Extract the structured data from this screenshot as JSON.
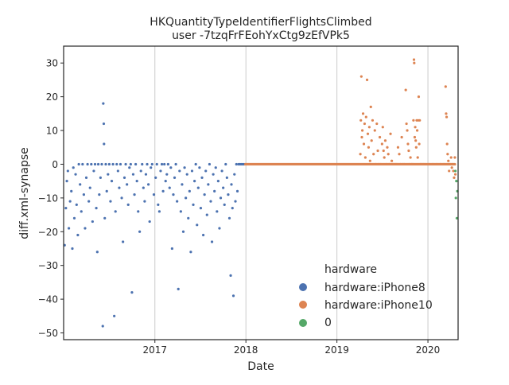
{
  "chart_data": {
    "type": "scatter",
    "title": "HKQuantityTypeIdentifierFlightsClimbed",
    "subtitle": "user -7tzqFrFEohYxCtg9zEfVPk5",
    "xlabel": "Date",
    "ylabel": "diff.xml-synapse",
    "xlim": [
      "2016-01-01",
      "2020-05-01"
    ],
    "ylim": [
      -52,
      35
    ],
    "x_ticks": [
      "2017",
      "2018",
      "2019",
      "2020"
    ],
    "y_ticks": [
      30,
      20,
      10,
      0,
      -10,
      -20,
      -30,
      -40,
      -50
    ],
    "y_tick_labels": [
      "30",
      "20",
      "10",
      "0",
      "−10",
      "−20",
      "−30",
      "−40",
      "−50"
    ],
    "grid": "vertical",
    "legend": {
      "title": "hardware",
      "placement": "lower-right"
    },
    "series": [
      {
        "name": "hardware:iPhone8",
        "color": "#4c72b0",
        "points": [
          [
            "2016-01-05",
            -24
          ],
          [
            "2016-01-10",
            -13
          ],
          [
            "2016-01-14",
            -5
          ],
          [
            "2016-01-18",
            -2
          ],
          [
            "2016-01-22",
            -19
          ],
          [
            "2016-01-27",
            -11
          ],
          [
            "2016-02-01",
            -8
          ],
          [
            "2016-02-05",
            -25
          ],
          [
            "2016-02-09",
            -1
          ],
          [
            "2016-02-13",
            -16
          ],
          [
            "2016-02-18",
            -3
          ],
          [
            "2016-02-22",
            -12
          ],
          [
            "2016-02-27",
            -21
          ],
          [
            "2016-03-02",
            0
          ],
          [
            "2016-03-07",
            -6
          ],
          [
            "2016-03-12",
            -14
          ],
          [
            "2016-03-17",
            0
          ],
          [
            "2016-03-22",
            -9
          ],
          [
            "2016-03-27",
            -19
          ],
          [
            "2016-04-01",
            -4
          ],
          [
            "2016-04-06",
            0
          ],
          [
            "2016-04-11",
            -11
          ],
          [
            "2016-04-16",
            -7
          ],
          [
            "2016-04-21",
            0
          ],
          [
            "2016-04-26",
            -17
          ],
          [
            "2016-05-01",
            -2
          ],
          [
            "2016-05-06",
            0
          ],
          [
            "2016-05-11",
            -13
          ],
          [
            "2016-05-15",
            -26
          ],
          [
            "2016-05-19",
            0
          ],
          [
            "2016-05-23",
            -9
          ],
          [
            "2016-05-28",
            -4
          ],
          [
            "2016-06-02",
            0
          ],
          [
            "2016-06-06",
            -48
          ],
          [
            "2016-06-08",
            18
          ],
          [
            "2016-06-10",
            12
          ],
          [
            "2016-06-11",
            6
          ],
          [
            "2016-06-14",
            -16
          ],
          [
            "2016-06-18",
            0
          ],
          [
            "2016-06-22",
            -8
          ],
          [
            "2016-06-27",
            -3
          ],
          [
            "2016-07-02",
            0
          ],
          [
            "2016-07-07",
            -11
          ],
          [
            "2016-07-12",
            -5
          ],
          [
            "2016-07-17",
            0
          ],
          [
            "2016-07-22",
            -45
          ],
          [
            "2016-07-27",
            -14
          ],
          [
            "2016-08-01",
            0
          ],
          [
            "2016-08-06",
            -2
          ],
          [
            "2016-08-11",
            -7
          ],
          [
            "2016-08-16",
            0
          ],
          [
            "2016-08-21",
            -10
          ],
          [
            "2016-08-26",
            -23
          ],
          [
            "2016-09-01",
            -4
          ],
          [
            "2016-09-06",
            0
          ],
          [
            "2016-09-11",
            -6
          ],
          [
            "2016-09-16",
            -12
          ],
          [
            "2016-09-21",
            -1
          ],
          [
            "2016-09-26",
            0
          ],
          [
            "2016-10-01",
            -38
          ],
          [
            "2016-10-06",
            -3
          ],
          [
            "2016-10-11",
            -9
          ],
          [
            "2016-10-16",
            0
          ],
          [
            "2016-10-21",
            -5
          ],
          [
            "2016-10-26",
            -14
          ],
          [
            "2016-11-01",
            -20
          ],
          [
            "2016-11-06",
            -2
          ],
          [
            "2016-11-11",
            0
          ],
          [
            "2016-11-16",
            -7
          ],
          [
            "2016-11-21",
            -11
          ],
          [
            "2016-11-26",
            -3
          ],
          [
            "2016-12-01",
            0
          ],
          [
            "2016-12-06",
            -6
          ],
          [
            "2016-12-11",
            -17
          ],
          [
            "2016-12-16",
            -1
          ],
          [
            "2016-12-21",
            0
          ],
          [
            "2016-12-28",
            -9
          ],
          [
            "2017-01-04",
            -4
          ],
          [
            "2017-01-09",
            0
          ],
          [
            "2017-01-14",
            -12
          ],
          [
            "2017-01-19",
            -14
          ],
          [
            "2017-01-24",
            -2
          ],
          [
            "2017-01-29",
            0
          ],
          [
            "2017-02-03",
            -8
          ],
          [
            "2017-02-08",
            0
          ],
          [
            "2017-02-13",
            -5
          ],
          [
            "2017-02-18",
            -3
          ],
          [
            "2017-02-23",
            0
          ],
          [
            "2017-03-01",
            -7
          ],
          [
            "2017-03-06",
            -1
          ],
          [
            "2017-03-11",
            -25
          ],
          [
            "2017-03-16",
            -9
          ],
          [
            "2017-03-21",
            -4
          ],
          [
            "2017-03-26",
            0
          ],
          [
            "2017-03-31",
            -11
          ],
          [
            "2017-04-05",
            -37
          ],
          [
            "2017-04-10",
            -2
          ],
          [
            "2017-04-15",
            -14
          ],
          [
            "2017-04-20",
            -6
          ],
          [
            "2017-04-25",
            -20
          ],
          [
            "2017-04-30",
            -1
          ],
          [
            "2017-05-05",
            -10
          ],
          [
            "2017-05-10",
            -3
          ],
          [
            "2017-05-15",
            -16
          ],
          [
            "2017-05-20",
            -8
          ],
          [
            "2017-05-25",
            -26
          ],
          [
            "2017-05-30",
            -2
          ],
          [
            "2017-06-04",
            -12
          ],
          [
            "2017-06-09",
            -5
          ],
          [
            "2017-06-14",
            0
          ],
          [
            "2017-06-19",
            -18
          ],
          [
            "2017-06-24",
            -7
          ],
          [
            "2017-06-29",
            -1
          ],
          [
            "2017-07-04",
            -13
          ],
          [
            "2017-07-09",
            -4
          ],
          [
            "2017-07-14",
            -21
          ],
          [
            "2017-07-19",
            -9
          ],
          [
            "2017-07-24",
            -2
          ],
          [
            "2017-07-29",
            -15
          ],
          [
            "2017-08-03",
            -6
          ],
          [
            "2017-08-08",
            0
          ],
          [
            "2017-08-13",
            -11
          ],
          [
            "2017-08-18",
            -23
          ],
          [
            "2017-08-23",
            -3
          ],
          [
            "2017-08-28",
            -8
          ],
          [
            "2017-09-02",
            -1
          ],
          [
            "2017-09-07",
            -14
          ],
          [
            "2017-09-12",
            -5
          ],
          [
            "2017-09-17",
            -19
          ],
          [
            "2017-09-22",
            -10
          ],
          [
            "2017-09-27",
            -2
          ],
          [
            "2017-10-02",
            -7
          ],
          [
            "2017-10-07",
            -12
          ],
          [
            "2017-10-12",
            0
          ],
          [
            "2017-10-17",
            -4
          ],
          [
            "2017-10-22",
            -9
          ],
          [
            "2017-10-27",
            -16
          ],
          [
            "2017-11-01",
            -33
          ],
          [
            "2017-11-04",
            -6
          ],
          [
            "2017-11-08",
            -13
          ],
          [
            "2017-11-12",
            -39
          ],
          [
            "2017-11-16",
            -3
          ],
          [
            "2017-11-20",
            -11
          ],
          [
            "2017-11-24",
            0
          ],
          [
            "2017-11-28",
            -8
          ],
          [
            "2017-12-03",
            0
          ],
          [
            "2017-12-08",
            0
          ],
          [
            "2017-12-13",
            0
          ],
          [
            "2017-12-18",
            0
          ],
          [
            "2017-12-23",
            0
          ],
          [
            "2017-12-28",
            0
          ]
        ]
      },
      {
        "name": "hardware:iPhone10",
        "color": "#dd8452",
        "points": [
          [
            "2019-04-05",
            3
          ],
          [
            "2019-04-07",
            13
          ],
          [
            "2019-04-09",
            26
          ],
          [
            "2019-04-11",
            8
          ],
          [
            "2019-04-13",
            10
          ],
          [
            "2019-04-16",
            15
          ],
          [
            "2019-04-19",
            6
          ],
          [
            "2019-04-22",
            12
          ],
          [
            "2019-04-25",
            2
          ],
          [
            "2019-04-28",
            14
          ],
          [
            "2019-05-02",
            25
          ],
          [
            "2019-05-05",
            9
          ],
          [
            "2019-05-08",
            5
          ],
          [
            "2019-05-11",
            11
          ],
          [
            "2019-05-14",
            1
          ],
          [
            "2019-05-17",
            17
          ],
          [
            "2019-05-20",
            7
          ],
          [
            "2019-05-24",
            13
          ],
          [
            "2019-05-28",
            3
          ],
          [
            "2019-06-02",
            10
          ],
          [
            "2019-06-06",
            0
          ],
          [
            "2019-06-10",
            12
          ],
          [
            "2019-06-14",
            4
          ],
          [
            "2019-06-18",
            0
          ],
          [
            "2019-06-22",
            8
          ],
          [
            "2019-06-26",
            0
          ],
          [
            "2019-07-01",
            6
          ],
          [
            "2019-07-04",
            11
          ],
          [
            "2019-07-07",
            4
          ],
          [
            "2019-07-10",
            2
          ],
          [
            "2019-07-14",
            7
          ],
          [
            "2019-07-18",
            0
          ],
          [
            "2019-07-22",
            5
          ],
          [
            "2019-07-26",
            3
          ],
          [
            "2019-07-30",
            0
          ],
          [
            "2019-08-04",
            9
          ],
          [
            "2019-08-09",
            1
          ],
          [
            "2019-08-14",
            0
          ],
          [
            "2019-08-19",
            0
          ],
          [
            "2019-08-24",
            0
          ],
          [
            "2019-08-29",
            0
          ],
          [
            "2019-09-03",
            5
          ],
          [
            "2019-09-08",
            3
          ],
          [
            "2019-09-13",
            0
          ],
          [
            "2019-09-18",
            8
          ],
          [
            "2019-09-23",
            0
          ],
          [
            "2019-09-28",
            0
          ],
          [
            "2019-10-04",
            22
          ],
          [
            "2019-10-07",
            12
          ],
          [
            "2019-10-10",
            10
          ],
          [
            "2019-10-13",
            6
          ],
          [
            "2019-10-16",
            4
          ],
          [
            "2019-10-19",
            0
          ],
          [
            "2019-10-23",
            2
          ],
          [
            "2019-10-27",
            0
          ],
          [
            "2019-11-01",
            0
          ],
          [
            "2019-11-04",
            13
          ],
          [
            "2019-11-06",
            31
          ],
          [
            "2019-11-07",
            30
          ],
          [
            "2019-11-09",
            8
          ],
          [
            "2019-11-11",
            11
          ],
          [
            "2019-11-13",
            7
          ],
          [
            "2019-11-15",
            5
          ],
          [
            "2019-11-17",
            13
          ],
          [
            "2019-11-19",
            10
          ],
          [
            "2019-11-21",
            2
          ],
          [
            "2019-11-23",
            13
          ],
          [
            "2019-11-25",
            20
          ],
          [
            "2019-11-27",
            6
          ],
          [
            "2019-11-29",
            13
          ],
          [
            "2019-12-01",
            0
          ],
          [
            "2019-12-05",
            0
          ],
          [
            "2019-12-10",
            0
          ],
          [
            "2019-12-15",
            0
          ],
          [
            "2019-12-20",
            0
          ],
          [
            "2020-01-05",
            0
          ],
          [
            "2020-01-20",
            0
          ],
          [
            "2020-02-05",
            0
          ],
          [
            "2020-02-20",
            0
          ],
          [
            "2020-03-05",
            0
          ],
          [
            "2020-03-12",
            23
          ],
          [
            "2020-03-14",
            15
          ],
          [
            "2020-03-16",
            14
          ],
          [
            "2020-03-18",
            6
          ],
          [
            "2020-03-20",
            3
          ],
          [
            "2020-03-23",
            1
          ],
          [
            "2020-03-26",
            -2
          ],
          [
            "2020-03-30",
            0
          ],
          [
            "2020-04-03",
            2
          ],
          [
            "2020-04-06",
            -1
          ],
          [
            "2020-04-09",
            0
          ],
          [
            "2020-04-12",
            -2
          ],
          [
            "2020-04-15",
            -4
          ],
          [
            "2020-04-18",
            2
          ],
          [
            "2020-04-20",
            -3
          ]
        ]
      },
      {
        "name": "0",
        "color": "#55a868",
        "points": [
          [
            "2020-04-20",
            -2
          ],
          [
            "2020-04-22",
            -10
          ],
          [
            "2020-04-24",
            -5
          ],
          [
            "2020-04-26",
            -16
          ],
          [
            "2020-04-28",
            -8
          ]
        ]
      }
    ]
  }
}
